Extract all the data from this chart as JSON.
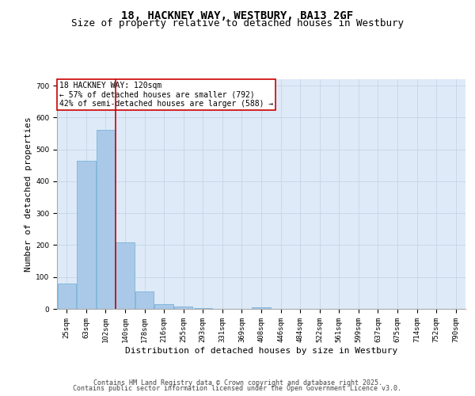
{
  "title_line1": "18, HACKNEY WAY, WESTBURY, BA13 2GF",
  "title_line2": "Size of property relative to detached houses in Westbury",
  "xlabel": "Distribution of detached houses by size in Westbury",
  "ylabel": "Number of detached properties",
  "categories": [
    "25sqm",
    "63sqm",
    "102sqm",
    "140sqm",
    "178sqm",
    "216sqm",
    "255sqm",
    "293sqm",
    "331sqm",
    "369sqm",
    "408sqm",
    "446sqm",
    "484sqm",
    "522sqm",
    "561sqm",
    "599sqm",
    "637sqm",
    "675sqm",
    "714sqm",
    "752sqm",
    "790sqm"
  ],
  "values": [
    80,
    465,
    560,
    208,
    55,
    15,
    7,
    2,
    0,
    0,
    4,
    0,
    0,
    0,
    0,
    0,
    0,
    0,
    0,
    0,
    0
  ],
  "bar_color": "#aac9e8",
  "bar_edgecolor": "#6aaad4",
  "grid_color": "#c8d8ea",
  "background_color": "#deeaf7",
  "annotation_text": "18 HACKNEY WAY: 120sqm\n← 57% of detached houses are smaller (792)\n42% of semi-detached houses are larger (588) →",
  "annotation_box_edgecolor": "#cc0000",
  "vline_color": "#cc0000",
  "vline_x": 2.5,
  "ylim": [
    0,
    720
  ],
  "yticks": [
    0,
    100,
    200,
    300,
    400,
    500,
    600,
    700
  ],
  "footnote_line1": "Contains HM Land Registry data © Crown copyright and database right 2025.",
  "footnote_line2": "Contains public sector information licensed under the Open Government Licence v3.0.",
  "title_fontsize": 10,
  "subtitle_fontsize": 9,
  "axis_label_fontsize": 8,
  "tick_fontsize": 6.5,
  "annotation_fontsize": 7,
  "footnote_fontsize": 6
}
